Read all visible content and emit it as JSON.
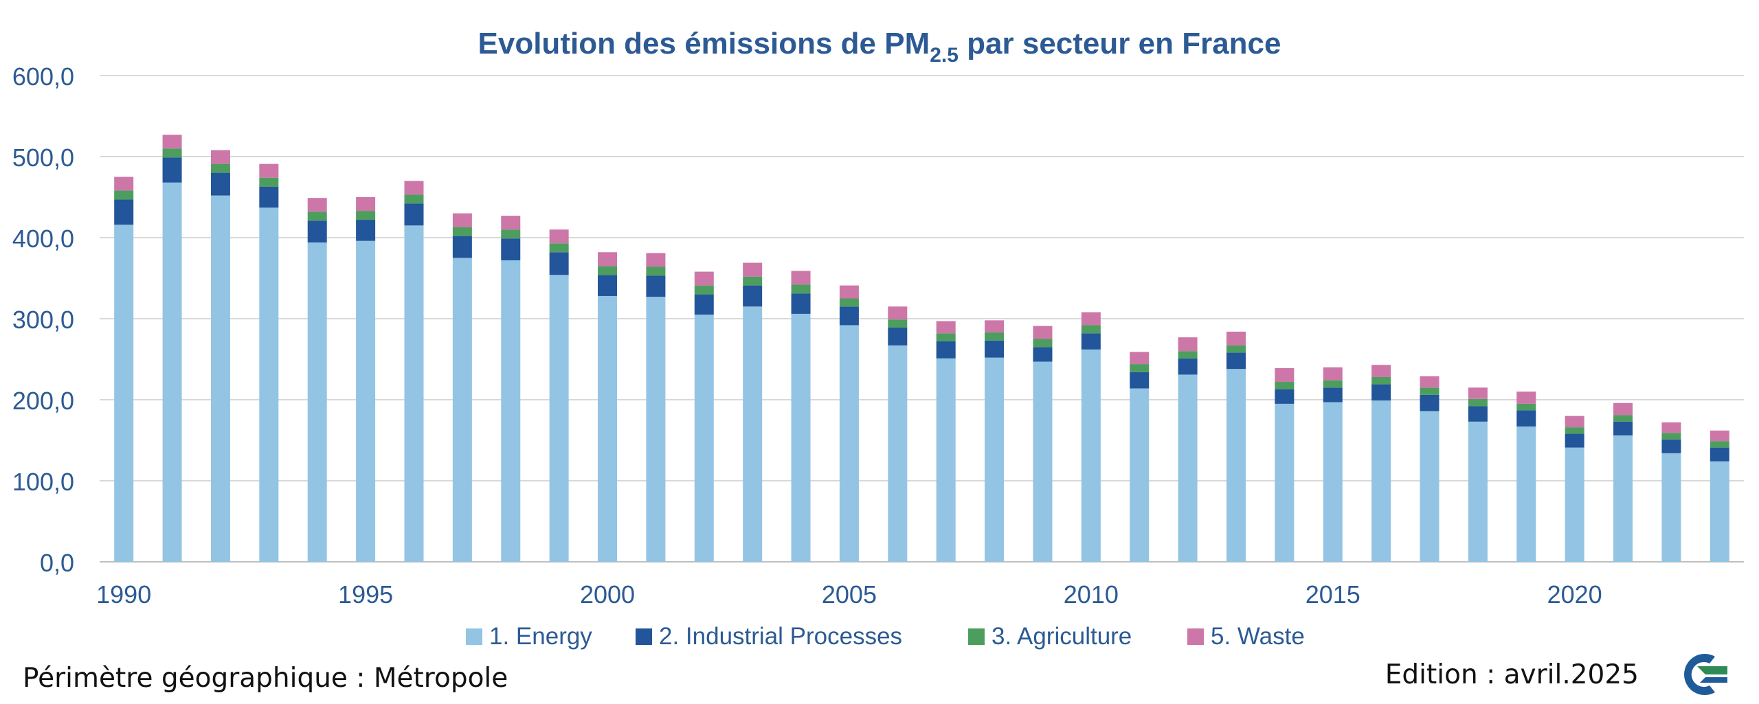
{
  "chart_data": {
    "type": "bar",
    "stacked": true,
    "title": "Evolution des émissions de PM",
    "title_subscript": "2.5",
    "title_suffix": " par secteur en France",
    "ylim": [
      0,
      600
    ],
    "yticks": [
      "0,0",
      "100,0",
      "200,0",
      "300,0",
      "400,0",
      "500,0",
      "600,0"
    ],
    "ytick_values": [
      0,
      100,
      200,
      300,
      400,
      500,
      600
    ],
    "grid": true,
    "legend_position": "bottom",
    "categories": [
      1990,
      1991,
      1992,
      1993,
      1994,
      1995,
      1996,
      1997,
      1998,
      1999,
      2000,
      2001,
      2002,
      2003,
      2004,
      2005,
      2006,
      2007,
      2008,
      2009,
      2010,
      2011,
      2012,
      2013,
      2014,
      2015,
      2016,
      2017,
      2018,
      2019,
      2020,
      2021,
      2022,
      2023
    ],
    "xtick_labels": [
      {
        "year": 1990,
        "label": "1990"
      },
      {
        "year": 1995,
        "label": "1995"
      },
      {
        "year": 2000,
        "label": "2000"
      },
      {
        "year": 2005,
        "label": "2005"
      },
      {
        "year": 2010,
        "label": "2010"
      },
      {
        "year": 2015,
        "label": "2015"
      },
      {
        "year": 2020,
        "label": "2020"
      }
    ],
    "series": [
      {
        "name": "1. Energy",
        "color": "#93c4e4",
        "values": [
          416,
          468,
          452,
          437,
          394,
          396,
          415,
          375,
          372,
          354,
          328,
          327,
          305,
          315,
          306,
          292,
          267,
          251,
          252,
          247,
          262,
          214,
          231,
          238,
          195,
          197,
          199,
          186,
          173,
          167,
          141,
          156,
          134,
          124
        ]
      },
      {
        "name": "2.  Industrial Processes",
        "color": "#22559a",
        "values": [
          31,
          31,
          28,
          26,
          27,
          26,
          27,
          27,
          27,
          28,
          26,
          26,
          25,
          26,
          25,
          23,
          22,
          21,
          21,
          18,
          20,
          20,
          20,
          20,
          18,
          18,
          20,
          20,
          19,
          20,
          17,
          17,
          17,
          17
        ]
      },
      {
        "name": "3.  Agriculture",
        "color": "#4d9e5e",
        "values": [
          11,
          11,
          11,
          11,
          11,
          11,
          11,
          11,
          11,
          11,
          11,
          11,
          11,
          11,
          11,
          10,
          10,
          10,
          10,
          10,
          10,
          10,
          9,
          9,
          9,
          9,
          9,
          9,
          9,
          8,
          8,
          8,
          8,
          8
        ]
      },
      {
        "name": "5.  Waste",
        "color": "#cc77a8",
        "values": [
          17,
          17,
          17,
          17,
          17,
          17,
          17,
          17,
          17,
          17,
          17,
          17,
          17,
          17,
          17,
          16,
          16,
          15,
          15,
          16,
          16,
          15,
          17,
          17,
          17,
          16,
          15,
          14,
          14,
          15,
          14,
          15,
          13,
          13
        ]
      }
    ]
  },
  "footer": {
    "left": "Périmètre géographique : Métropole",
    "right": "Edition : avril.2025"
  },
  "colors": {
    "title": "#2c5a94",
    "axis_text": "#2c5a94",
    "legend_text": "#2c5a94",
    "grid": "#d9d9d9"
  },
  "logo": {
    "icon": "organization-logo-icon"
  }
}
